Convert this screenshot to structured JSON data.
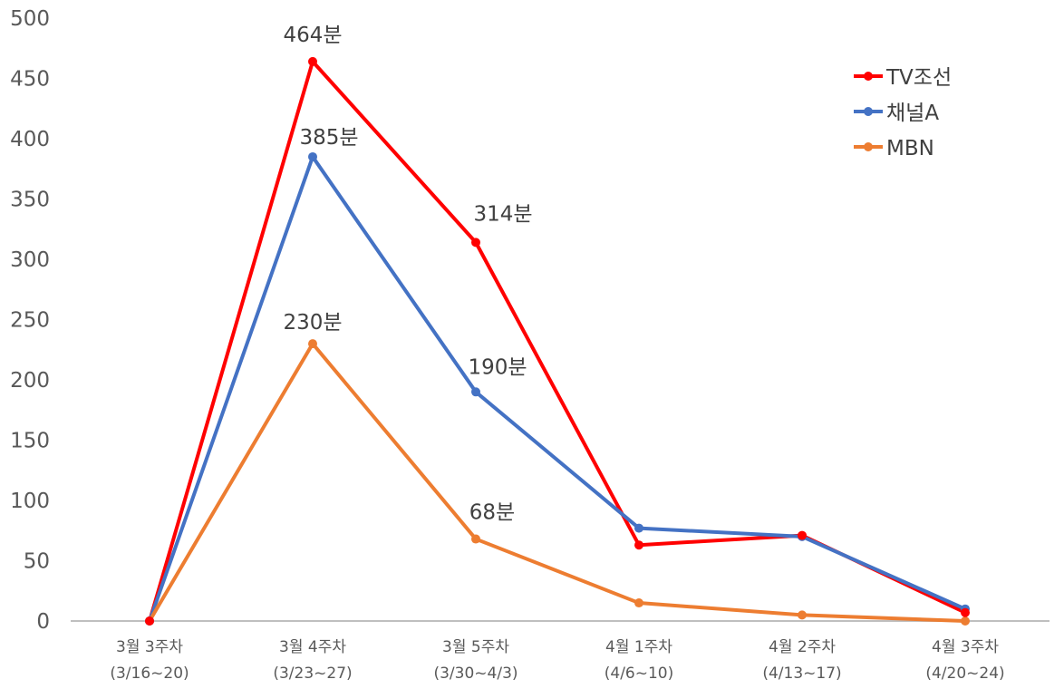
{
  "chart_data": {
    "type": "line",
    "title": "",
    "xlabel": "",
    "ylabel": "",
    "ylim": [
      0,
      500
    ],
    "yticks": [
      0,
      50,
      100,
      150,
      200,
      250,
      300,
      350,
      400,
      450,
      500
    ],
    "grid": false,
    "legend_position": "top-right",
    "categories": [
      [
        "3월 3주차",
        "(3/16~20)"
      ],
      [
        "3월 4주차",
        "(3/23~27)"
      ],
      [
        "3월 5주차",
        "(3/30~4/3)"
      ],
      [
        "4월 1주차",
        "(4/6~10)"
      ],
      [
        "4월 2주차",
        "(4/13~17)"
      ],
      [
        "4월 3주차",
        "(4/20~24)"
      ]
    ],
    "series": [
      {
        "name": "TV조선",
        "color": "#ff0000",
        "values": [
          0,
          464,
          314,
          63,
          71,
          7
        ]
      },
      {
        "name": "채널A",
        "color": "#4472c4",
        "values": [
          0,
          385,
          190,
          77,
          70,
          10
        ]
      },
      {
        "name": "MBN",
        "color": "#ed7d31",
        "values": [
          0,
          230,
          68,
          15,
          5,
          0
        ]
      }
    ],
    "data_labels": [
      {
        "series": 0,
        "index": 1,
        "text": "464분"
      },
      {
        "series": 1,
        "index": 1,
        "text": "385분"
      },
      {
        "series": 0,
        "index": 2,
        "text": "314분"
      },
      {
        "series": 2,
        "index": 1,
        "text": "230분"
      },
      {
        "series": 1,
        "index": 2,
        "text": "190분"
      },
      {
        "series": 2,
        "index": 2,
        "text": "68분"
      }
    ]
  }
}
